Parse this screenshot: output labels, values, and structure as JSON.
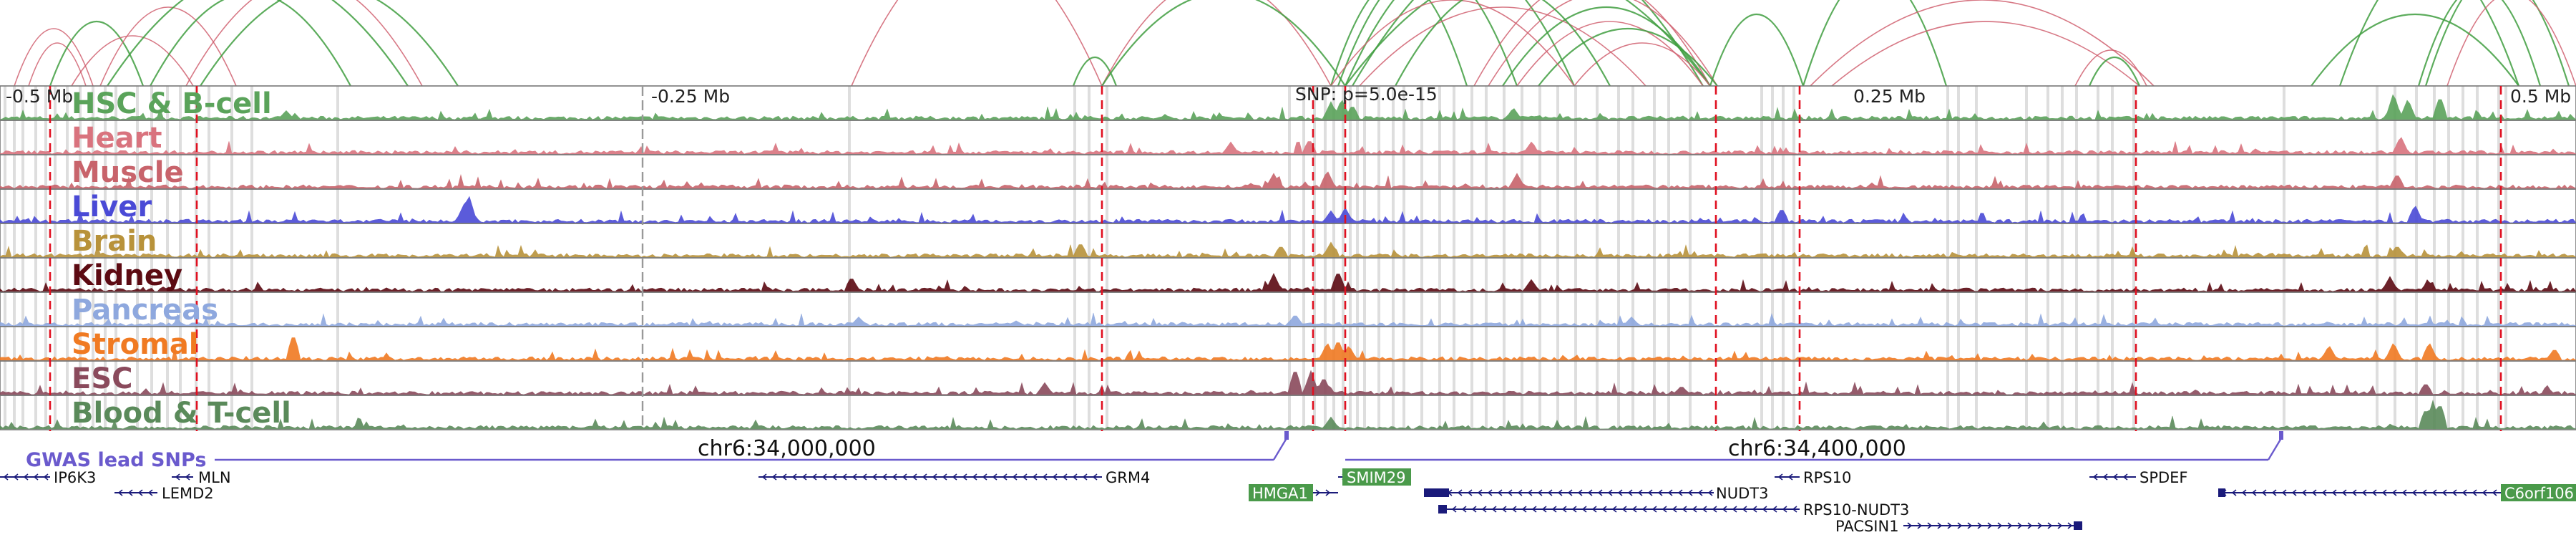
{
  "genome_browser": {
    "scale_labels": {
      "left": "-0.5 Mb",
      "neg_mid": "-0.25 Mb",
      "snp": "SNP: p=5.0e-15",
      "pos_mid": "0.25 Mb",
      "right": "0.5 Mb"
    },
    "tracks": [
      {
        "name": "HSC & B-cell",
        "color": "#5aa35a"
      },
      {
        "name": "Heart",
        "color": "#d9737e"
      },
      {
        "name": "Muscle",
        "color": "#c8636b"
      },
      {
        "name": "Liver",
        "color": "#4a4ad6"
      },
      {
        "name": "Brain",
        "color": "#b8923a"
      },
      {
        "name": "Kidney",
        "color": "#5c0a12"
      },
      {
        "name": "Pancreas",
        "color": "#8ea8de"
      },
      {
        "name": "Stromal",
        "color": "#f07a22"
      },
      {
        "name": "ESC",
        "color": "#8a4a5c"
      },
      {
        "name": "Blood & T-cell",
        "color": "#5a8a5a"
      }
    ],
    "gwas": {
      "title": "GWAS lead SNPs",
      "coord_left": "chr6:34,000,000",
      "coord_right": "chr6:34,400,000",
      "color": "#6a5acd"
    },
    "genes": [
      {
        "name": "IP6K3",
        "highlight": false
      },
      {
        "name": "MLN",
        "highlight": false
      },
      {
        "name": "LEMD2",
        "highlight": false
      },
      {
        "name": "GRM4",
        "highlight": false
      },
      {
        "name": "HMGA1",
        "highlight": true
      },
      {
        "name": "SMIM29",
        "highlight": true
      },
      {
        "name": "NUDT3",
        "highlight": false
      },
      {
        "name": "RPS10",
        "highlight": false
      },
      {
        "name": "RPS10-NUDT3",
        "highlight": false
      },
      {
        "name": "PACSIN1",
        "highlight": false
      },
      {
        "name": "SPDEF",
        "highlight": false
      },
      {
        "name": "C6orf106",
        "highlight": true
      }
    ],
    "colors": {
      "loop_green": "#3f9e3f",
      "loop_red": "#d06070",
      "marker_red": "#e01020",
      "gene_navy": "#1a1a7a",
      "gene_highlight": "#4a9a4a"
    }
  }
}
